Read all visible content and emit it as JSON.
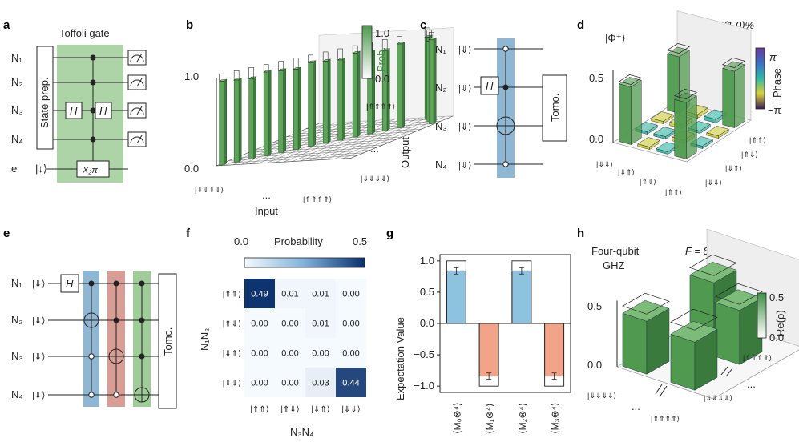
{
  "panels": {
    "a": {
      "label": "a",
      "title": "Toffoli gate",
      "qubits": [
        "N₁",
        "N₂",
        "N₃",
        "N₄",
        "e"
      ],
      "state_prep": "State prep.",
      "gate_h": "H",
      "gate_x": "X₂π",
      "e_state": "|↓⟩"
    },
    "b": {
      "label": "b",
      "zticks": [
        "1.0",
        "0.0"
      ],
      "colorbar_title": "Prob.",
      "colorbar_ticks": [
        "1.0",
        "0.0"
      ],
      "x_label": "Input",
      "y_label": "Output",
      "x_ticks": [
        "|⇓⇓⇓⇓⟩",
        "...",
        "|⇑⇑⇑⇑⟩"
      ],
      "y_ticks": [
        "|⇑⇑⇑⇑⟩",
        "...",
        "|⇓⇓⇓⇓⟩"
      ]
    },
    "c": {
      "label": "c",
      "qubits": [
        "N₁",
        "N₂",
        "N₃",
        "N₄"
      ],
      "states": [
        "|⇓⟩",
        "|⇓⟩",
        "|⇓⟩",
        "|⇓⟩"
      ],
      "gate_h": "H",
      "tomo": "Tomo."
    },
    "d": {
      "label": "d",
      "state": "|Φ⁺⟩",
      "fidelity": "F = 95.2(1.0)%",
      "zticks": [
        "0.5",
        "0.0"
      ],
      "colorbar_title": "Phase",
      "colorbar_ticks": [
        "π",
        "−π"
      ],
      "ticks_left": [
        "|⇓⇓⟩",
        "|⇓⇑⟩",
        "|⇑⇓⟩",
        "|⇑⇑⟩"
      ],
      "ticks_right": [
        "|⇑⇑⟩",
        "|⇑⇓⟩",
        "|⇓⇑⟩",
        "|⇓⇓⟩"
      ]
    },
    "e": {
      "label": "e",
      "qubits": [
        "N₁",
        "N₂",
        "N₃",
        "N₄"
      ],
      "states": [
        "|⇓⟩",
        "|⇓⟩",
        "|⇓⟩",
        "|⇓⟩"
      ],
      "gate_h": "H",
      "tomo": "Tomo."
    },
    "f": {
      "label": "f",
      "colorbar_title": "Probability",
      "colorbar_min": "0.0",
      "colorbar_max": "0.5",
      "ylabel": "N₁N₂",
      "xlabel": "N₃N₄"
    },
    "g": {
      "label": "g",
      "ylabel": "Expectation Value"
    },
    "h": {
      "label": "h",
      "title_line1": "Four-qubit",
      "title_line2": "GHZ",
      "fidelity": "F = 88.5(2.3)%",
      "zticks": [
        "0.5",
        "0.0"
      ],
      "colorbar_title": "Re(ρ)",
      "colorbar_ticks": [
        "0.5",
        "0.0"
      ],
      "ticks": [
        "|⇓⇓⇓⇓⟩",
        "...",
        "|⇑⇑⇑⇑⟩",
        "|⇓⇓⇓⇓⟩",
        "|⇑⇑⇑⇑⟩",
        "..."
      ]
    }
  },
  "chart_data": [
    {
      "type": "heatmap",
      "panel": "f",
      "rows": [
        "|⇑⇑⟩",
        "|⇑⇓⟩",
        "|⇓⇑⟩",
        "|⇓⇓⟩"
      ],
      "cols": [
        "|⇑⇑⟩",
        "|⇑⇓⟩",
        "|⇓⇑⟩",
        "|⇓⇓⟩"
      ],
      "values": [
        [
          0.49,
          0.01,
          0.01,
          0.0
        ],
        [
          0.0,
          0.0,
          0.01,
          0.0
        ],
        [
          0.0,
          0.0,
          0.0,
          0.0
        ],
        [
          0.0,
          0.0,
          0.03,
          0.44
        ]
      ],
      "labels": [
        [
          "0.49",
          "0.01",
          "0.01",
          "0.00"
        ],
        [
          "0.00",
          "0.00",
          "0.01",
          "0.00"
        ],
        [
          "0.00",
          "0.00",
          "0.00",
          "0.00"
        ],
        [
          "0.00",
          "0.00",
          "0.03",
          "0.44"
        ]
      ],
      "vmin": 0.0,
      "vmax": 0.5
    },
    {
      "type": "bar",
      "panel": "g",
      "categories": [
        "⟨M₀⊗⁴⟩",
        "⟨M₁⊗⁴⟩",
        "⟨M₂⊗⁴⟩",
        "⟨M₃⊗⁴⟩"
      ],
      "values": [
        0.84,
        -0.84,
        0.84,
        -0.84
      ],
      "ideal": [
        1.0,
        -1.0,
        1.0,
        -1.0
      ],
      "ylim": [
        -1.1,
        1.1
      ],
      "yticks": [
        "1.0",
        "0.5",
        "0.0",
        "−0.5",
        "−1.0"
      ],
      "colors": {
        "positive": "#8ec3df",
        "negative": "#f2a488"
      }
    }
  ]
}
